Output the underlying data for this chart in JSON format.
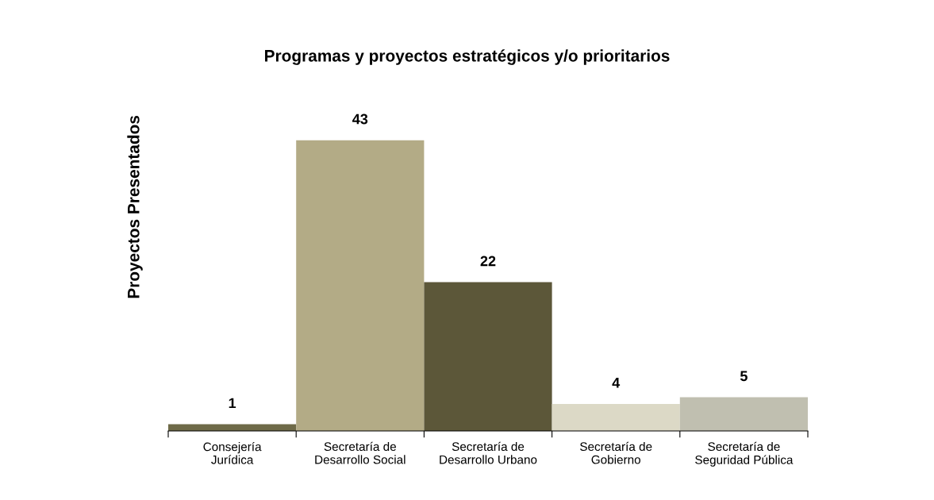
{
  "chart_data": {
    "type": "bar",
    "title": "Programas y proyectos estratégicos y/o prioritarios",
    "ylabel": "Proyectos Presentados",
    "categories": [
      "Consejería\nJurídica",
      "Secretaría de\nDesarrollo Social",
      "Secretaría de\nDesarrollo Urbano",
      "Secretaría de\nGobierno",
      "Secretaría de\nSeguridad Pública"
    ],
    "values": [
      1,
      43,
      22,
      4,
      5
    ],
    "colors": [
      "#6e6a48",
      "#b3ab86",
      "#5c5739",
      "#dcd9c6",
      "#c0bfb0"
    ],
    "data_labels": true,
    "grid": false,
    "legend": false
  }
}
